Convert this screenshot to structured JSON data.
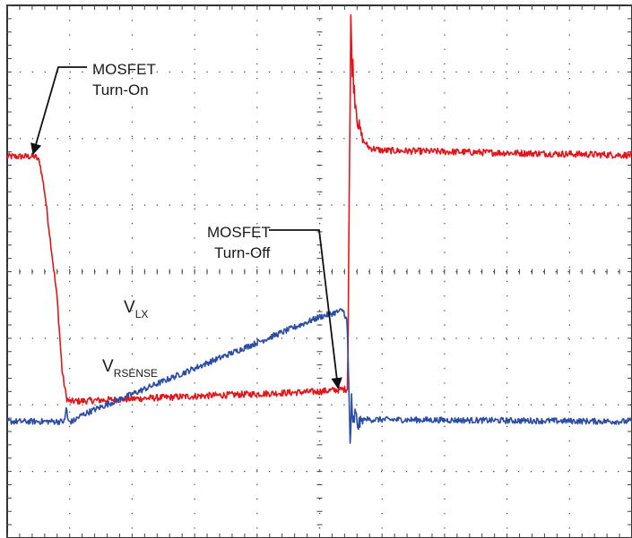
{
  "chart_data": {
    "type": "line",
    "title": "",
    "xlabel": "",
    "ylabel": "",
    "grid": true,
    "grid_divisions": {
      "x": 10,
      "y": 8
    },
    "xlim": [
      0,
      10
    ],
    "ylim": [
      -4,
      4
    ],
    "series": [
      {
        "name": "V_LX",
        "label_main": "V",
        "label_sub": "LX",
        "color": "#e3151b",
        "noise": 0.05,
        "points": [
          [
            0.0,
            1.73
          ],
          [
            0.45,
            1.73
          ],
          [
            0.52,
            1.65
          ],
          [
            0.6,
            1.2
          ],
          [
            0.7,
            0.4
          ],
          [
            0.8,
            -0.4
          ],
          [
            0.88,
            -1.5
          ],
          [
            0.95,
            -1.9
          ],
          [
            1.0,
            -1.95
          ],
          [
            3.0,
            -1.87
          ],
          [
            5.0,
            -1.8
          ],
          [
            5.45,
            -1.76
          ],
          [
            5.46,
            -0.6
          ],
          [
            5.47,
            0.8
          ],
          [
            5.49,
            2.6
          ],
          [
            5.5,
            3.7
          ],
          [
            5.52,
            3.2
          ],
          [
            5.56,
            2.7
          ],
          [
            5.62,
            2.2
          ],
          [
            5.7,
            1.96
          ],
          [
            5.8,
            1.86
          ],
          [
            6.0,
            1.82
          ],
          [
            10.0,
            1.75
          ]
        ]
      },
      {
        "name": "V_RSENSE",
        "label_main": "V",
        "label_sub": "RSENSE",
        "color": "#2b4da3",
        "noise": 0.045,
        "points": [
          [
            0.0,
            -2.25
          ],
          [
            0.92,
            -2.25
          ],
          [
            0.95,
            -2.0
          ],
          [
            0.97,
            -2.25
          ],
          [
            1.05,
            -2.25
          ],
          [
            1.2,
            -2.15
          ],
          [
            3.0,
            -1.45
          ],
          [
            5.0,
            -0.68
          ],
          [
            5.38,
            -0.58
          ],
          [
            5.44,
            -0.75
          ],
          [
            5.47,
            -1.8
          ],
          [
            5.49,
            -2.6
          ],
          [
            5.51,
            -2.0
          ],
          [
            5.53,
            -2.4
          ],
          [
            5.56,
            -2.15
          ],
          [
            5.62,
            -2.3
          ],
          [
            5.7,
            -2.22
          ],
          [
            10.0,
            -2.25
          ]
        ]
      }
    ],
    "annotations": [
      {
        "lines": [
          "MOSFET",
          "Turn-On"
        ],
        "target": [
          0.48,
          1.73
        ]
      },
      {
        "lines": [
          "MOSFET",
          "Turn-Off"
        ],
        "target": [
          5.4,
          -1.72
        ]
      }
    ]
  }
}
